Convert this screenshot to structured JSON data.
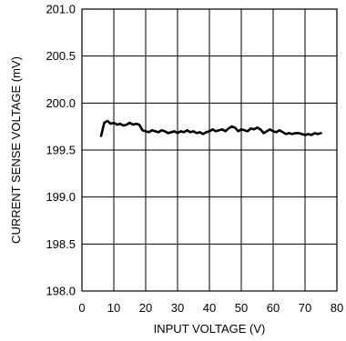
{
  "chart_data": {
    "type": "line",
    "title": "",
    "xlabel": "INPUT VOLTAGE (V)",
    "ylabel": "CURRENT SENSE VOLTAGE (mV)",
    "xlim": [
      0,
      80
    ],
    "ylim": [
      198.0,
      201.0
    ],
    "x_ticks": [
      "0",
      "10",
      "20",
      "30",
      "40",
      "50",
      "60",
      "70",
      "80"
    ],
    "y_ticks": [
      "198.0",
      "198.5",
      "199.0",
      "199.5",
      "200.0",
      "200.5",
      "201.0"
    ],
    "grid": true,
    "legend": "none",
    "line_color": "#000000",
    "series": [
      {
        "x": [
          6,
          7,
          8,
          9,
          10,
          11,
          12,
          13,
          14,
          15,
          16,
          17,
          18,
          19,
          20,
          21,
          22,
          23,
          24,
          25,
          26,
          27,
          28,
          29,
          30,
          31,
          32,
          33,
          34,
          35,
          36,
          37,
          38,
          39,
          40,
          41,
          42,
          43,
          44,
          45,
          46,
          47,
          48,
          49,
          50,
          51,
          52,
          53,
          54,
          55,
          56,
          57,
          58,
          59,
          60,
          61,
          62,
          63,
          64,
          65,
          66,
          67,
          68,
          69,
          70,
          71,
          72,
          73,
          74,
          75
        ],
        "y": [
          199.65,
          199.79,
          199.81,
          199.78,
          199.79,
          199.77,
          199.78,
          199.76,
          199.77,
          199.79,
          199.77,
          199.78,
          199.77,
          199.71,
          199.7,
          199.69,
          199.71,
          199.7,
          199.69,
          199.71,
          199.7,
          199.68,
          199.69,
          199.7,
          199.68,
          199.7,
          199.69,
          199.71,
          199.69,
          199.7,
          199.68,
          199.69,
          199.67,
          199.69,
          199.7,
          199.72,
          199.7,
          199.71,
          199.72,
          199.7,
          199.73,
          199.75,
          199.74,
          199.7,
          199.72,
          199.71,
          199.7,
          199.73,
          199.72,
          199.74,
          199.72,
          199.68,
          199.7,
          199.72,
          199.7,
          199.69,
          199.71,
          199.69,
          199.67,
          199.68,
          199.67,
          199.68,
          199.68,
          199.67,
          199.66,
          199.67,
          199.66,
          199.68,
          199.67,
          199.68
        ]
      }
    ]
  }
}
